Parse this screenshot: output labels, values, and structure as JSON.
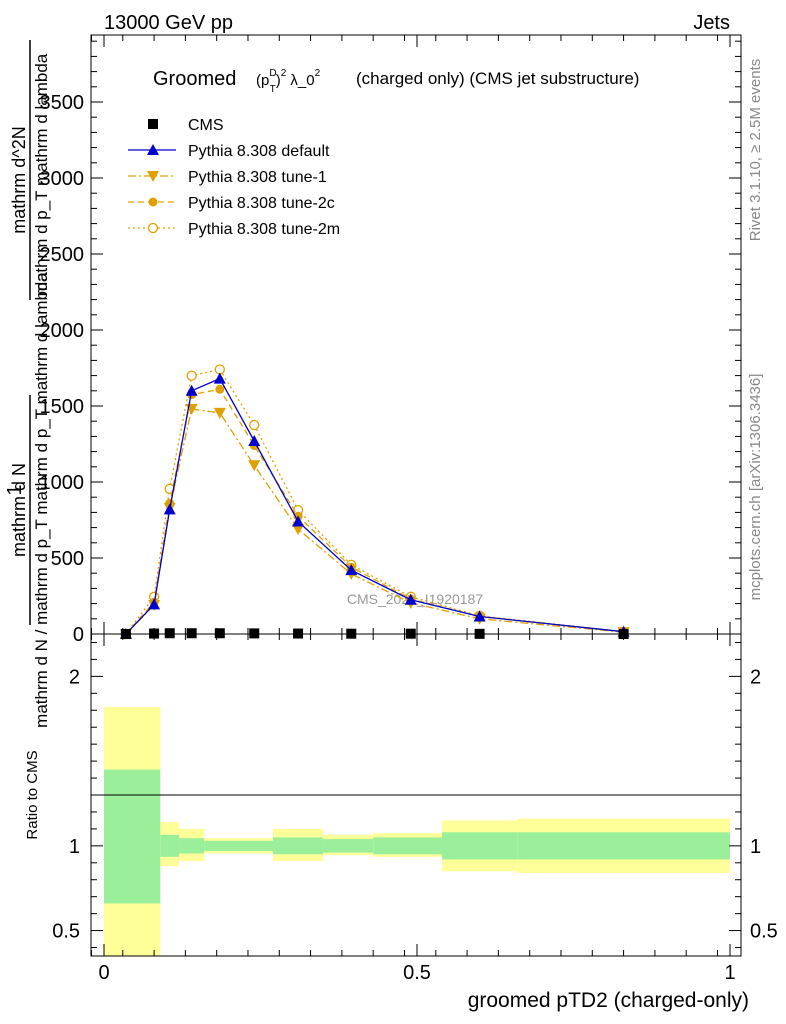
{
  "header": {
    "left": "13000 GeV pp",
    "right": "Jets"
  },
  "side": {
    "rivet": "Rivet 3.1.10, ≥ 2.5M events",
    "mcplots": "mcplots.cern.ch [arXiv:1306.3436]"
  },
  "chart_data": {
    "type": "line",
    "title_main": "Groomed",
    "title_rest": "(charged only) (CMS jet substructure)",
    "watermark": "CMS_2021_I1920187",
    "ylabel_top": "1",
    "ylabel_num": "mathrm d N",
    "ylabel_den": "mathrm d N / mathrm d p_T mathrm d p_T mathrm d lambda",
    "ylabel_num2": "mathrm d^2N",
    "ylabel_den2": "mathrm d p_T mathrm d lambda",
    "ratio_ylabel": "Ratio to CMS",
    "xlabel": "groomed pTD2 (charged-only)",
    "xlim": [
      0,
      1
    ],
    "ylim": [
      0,
      4000
    ],
    "ratio_ylim": [
      0.35,
      2.25
    ],
    "yticks": [
      0,
      500,
      1000,
      1500,
      2000,
      2500,
      3000,
      3500
    ],
    "ytick_labels": [
      "0",
      "500",
      "1000",
      "1500",
      "2000",
      "2500",
      "3000",
      "3500"
    ],
    "xticks": [
      0,
      0.5,
      1
    ],
    "xtick_labels": [
      "0",
      "0.5",
      "1"
    ],
    "ratio_yticks": [
      0.5,
      1,
      2
    ],
    "ratio_ytick_labels": [
      "0.5",
      "1",
      "2"
    ],
    "bin_edges": [
      0,
      0.09,
      0.12,
      0.16,
      0.27,
      0.35,
      0.43,
      0.54,
      0.66,
      1.0
    ],
    "x": [
      0.035,
      0.08,
      0.105,
      0.14,
      0.185,
      0.24,
      0.31,
      0.395,
      0.49,
      0.6,
      0.83
    ],
    "cms": [
      0,
      3,
      5,
      5,
      5,
      4,
      3,
      2,
      2,
      1,
      0
    ],
    "series": [
      {
        "name": "CMS",
        "color": "#000000",
        "marker": "square",
        "dash": "none",
        "values": [
          0,
          3,
          5,
          5,
          5,
          4,
          3,
          2,
          2,
          1,
          0
        ]
      },
      {
        "name": "Pythia 8.308 default",
        "color": "#0000cc",
        "marker": "triangle-up",
        "dash": "solid",
        "values": [
          0,
          195,
          820,
          1600,
          1680,
          1270,
          740,
          420,
          225,
          115,
          15
        ]
      },
      {
        "name": "Pythia 8.308 tune-1",
        "color": "#e0a000",
        "marker": "triangle-down",
        "dash": "dashdot",
        "values": [
          0,
          190,
          830,
          1480,
          1455,
          1110,
          690,
          395,
          205,
          100,
          12
        ]
      },
      {
        "name": "Pythia 8.308 tune-2c",
        "color": "#e0a000",
        "marker": "circle-filled",
        "dash": "dashed",
        "values": [
          0,
          210,
          860,
          1575,
          1610,
          1240,
          775,
          440,
          230,
          115,
          15
        ]
      },
      {
        "name": "Pythia 8.308 tune-2m",
        "color": "#e0a000",
        "marker": "circle-open",
        "dash": "dotted",
        "values": [
          0,
          245,
          955,
          1700,
          1740,
          1375,
          815,
          455,
          245,
          120,
          15
        ]
      }
    ],
    "ratio_band_inner": [
      [
        0.66,
        1.45
      ],
      [
        0.935,
        1.065
      ],
      [
        0.955,
        1.045
      ],
      [
        0.97,
        1.03
      ],
      [
        0.95,
        1.05
      ],
      [
        0.96,
        1.04
      ],
      [
        0.95,
        1.05
      ],
      [
        0.92,
        1.08
      ],
      [
        0.92,
        1.08
      ]
    ],
    "ratio_band_outer": [
      [
        0.35,
        1.82
      ],
      [
        0.88,
        1.14
      ],
      [
        0.91,
        1.1
      ],
      [
        0.955,
        1.045
      ],
      [
        0.91,
        1.1
      ],
      [
        0.945,
        1.065
      ],
      [
        0.935,
        1.075
      ],
      [
        0.85,
        1.15
      ],
      [
        0.84,
        1.16
      ]
    ],
    "colors": {
      "band_inner": "#9bef9b",
      "band_outer": "#ffff99"
    },
    "legend_position": "top-left"
  }
}
